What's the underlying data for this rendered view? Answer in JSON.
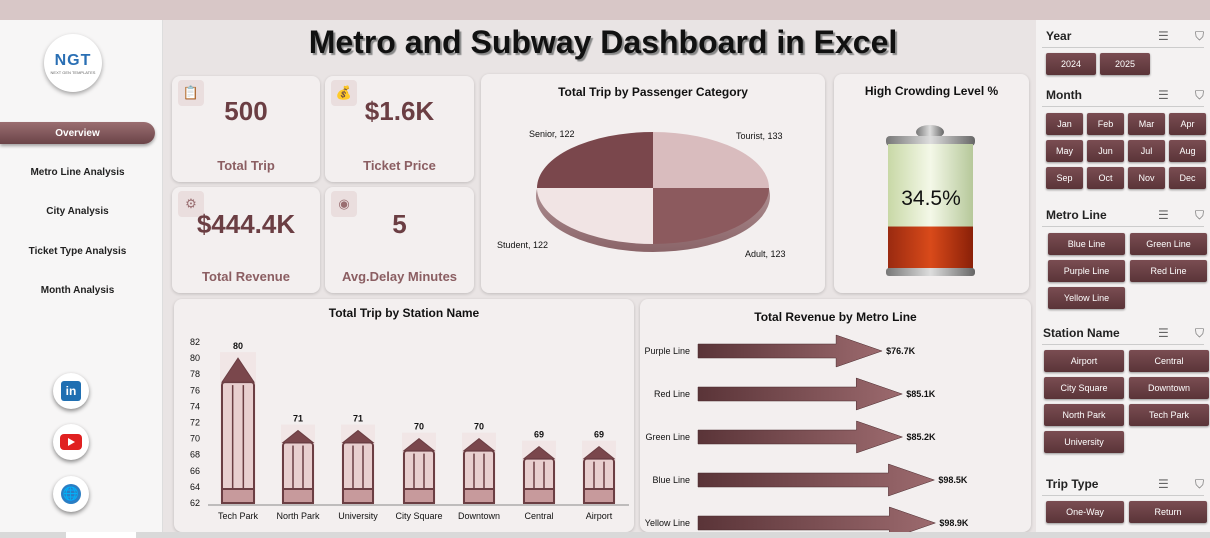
{
  "title": "Metro and Subway Dashboard in Excel",
  "logo": {
    "mark": "NGT",
    "sub": "NEXT GEN TEMPLATES"
  },
  "nav": [
    "Overview",
    "Metro Line Analysis",
    "City Analysis",
    "Ticket Type Analysis",
    "Month Analysis"
  ],
  "social": {
    "linkedin": "in",
    "website": "🌐"
  },
  "kpis": [
    {
      "value": "500",
      "label": "Total Trip",
      "icon": "clipboard-icon"
    },
    {
      "value": "$1.6K",
      "label": "Ticket Price",
      "icon": "money-bag-icon"
    },
    {
      "value": "$444.4K",
      "label": "Total Revenue",
      "icon": "revenue-icon"
    },
    {
      "value": "5",
      "label": "Avg.Delay Minutes",
      "icon": "clock-icon"
    }
  ],
  "pie": {
    "title": "Total Trip by Passenger Category",
    "labels": [
      "Senior, 122",
      "Tourist, 133",
      "Student, 122",
      "Adult, 123"
    ],
    "chart_data": {
      "type": "pie",
      "categories": [
        "Senior",
        "Tourist",
        "Student",
        "Adult"
      ],
      "values": [
        122,
        133,
        122,
        123
      ]
    }
  },
  "crowding": {
    "title": "High Crowding Level %",
    "value": "34.5%",
    "fraction": 0.345
  },
  "station_chart": {
    "title": "Total Trip by Station Name",
    "chart_data": {
      "type": "bar",
      "categories": [
        "Tech Park",
        "North Park",
        "University",
        "City Square",
        "Downtown",
        "Central",
        "Airport"
      ],
      "values": [
        80,
        71,
        71,
        70,
        70,
        69,
        69
      ],
      "yticks": [
        "82",
        "80",
        "78",
        "76",
        "74",
        "72",
        "70",
        "68",
        "66",
        "64",
        "62"
      ],
      "ylim": [
        62,
        82
      ]
    }
  },
  "revenue_chart": {
    "title": "Total Revenue by Metro Line",
    "chart_data": {
      "type": "bar",
      "categories": [
        "Purple Line",
        "Red Line",
        "Green Line",
        "Blue Line",
        "Yellow Line"
      ],
      "values": [
        76.7,
        85.1,
        85.2,
        98.5,
        98.9
      ],
      "labels": [
        "$76.7K",
        "$85.1K",
        "$85.2K",
        "$98.5K",
        "$98.9K"
      ]
    }
  },
  "slicers": {
    "year": {
      "title": "Year",
      "items": [
        "2024",
        "2025"
      ]
    },
    "month": {
      "title": "Month",
      "items": [
        "Jan",
        "Feb",
        "Mar",
        "Apr",
        "May",
        "Jun",
        "Jul",
        "Aug",
        "Sep",
        "Oct",
        "Nov",
        "Dec"
      ]
    },
    "metro_line": {
      "title": "Metro Line",
      "items": [
        "Blue Line",
        "Green Line",
        "Purple Line",
        "Red Line",
        "Yellow Line"
      ]
    },
    "station": {
      "title": "Station Name",
      "items": [
        "Airport",
        "Central",
        "City Square",
        "Downtown",
        "North Park",
        "Tech Park",
        "University"
      ]
    },
    "trip_type": {
      "title": "Trip Type",
      "items": [
        "One-Way",
        "Return"
      ]
    },
    "multi_select_icon": "multi-select-icon",
    "clear_filter_icon": "clear-filter-icon"
  },
  "colors": {
    "accent": "#6b4448",
    "light": "#f3efef",
    "pale_bar": "#e8cfcf"
  }
}
